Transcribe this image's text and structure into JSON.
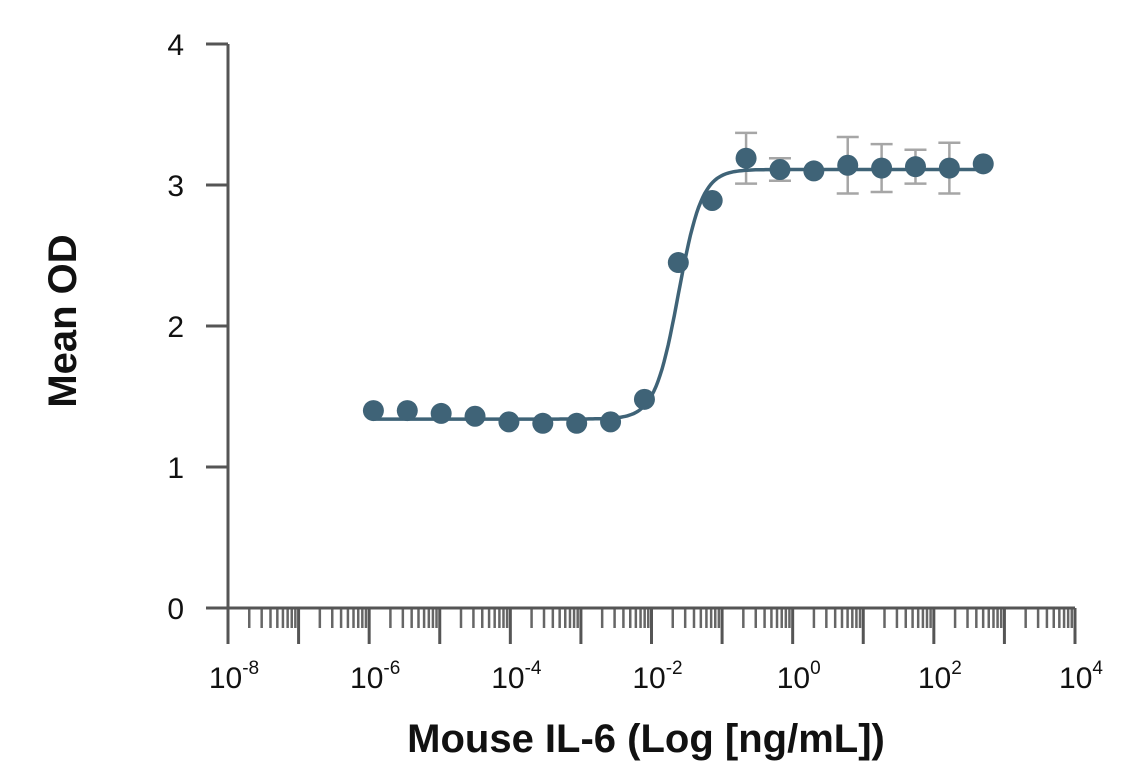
{
  "chart_data": {
    "type": "scatter",
    "title": "",
    "xlabel": "Mouse IL-6 (Log [ng/mL])",
    "ylabel": "Mean OD",
    "x_scale": "log10",
    "xlim_log10": [
      -8,
      4
    ],
    "ylim": [
      0,
      4
    ],
    "grid": false,
    "legend": "none",
    "y_ticks": [
      {
        "value": 0,
        "label": "0"
      },
      {
        "value": 1,
        "label": "1"
      },
      {
        "value": 2,
        "label": "2"
      },
      {
        "value": 3,
        "label": "3"
      },
      {
        "value": 4,
        "label": "4"
      }
    ],
    "x_ticks": [
      {
        "exp": -8,
        "base": "10",
        "sup": "-8"
      },
      {
        "exp": -6,
        "base": "10",
        "sup": "-6"
      },
      {
        "exp": -4,
        "base": "10",
        "sup": "-4"
      },
      {
        "exp": -2,
        "base": "10",
        "sup": "-2"
      },
      {
        "exp": 0,
        "base": "10",
        "sup": "0"
      },
      {
        "exp": 2,
        "base": "10",
        "sup": "2"
      },
      {
        "exp": 4,
        "base": "10",
        "sup": "4"
      }
    ],
    "series": [
      {
        "name": "Mean OD",
        "color": "#3f6377",
        "error_color": "#a6a6a6",
        "points": [
          {
            "x_log10": -5.94,
            "y": 1.4,
            "err": 0
          },
          {
            "x_log10": -5.46,
            "y": 1.4,
            "err": 0
          },
          {
            "x_log10": -4.98,
            "y": 1.38,
            "err": 0
          },
          {
            "x_log10": -4.5,
            "y": 1.36,
            "err": 0
          },
          {
            "x_log10": -4.02,
            "y": 1.32,
            "err": 0
          },
          {
            "x_log10": -3.54,
            "y": 1.31,
            "err": 0
          },
          {
            "x_log10": -3.06,
            "y": 1.31,
            "err": 0
          },
          {
            "x_log10": -2.58,
            "y": 1.32,
            "err": 0
          },
          {
            "x_log10": -2.1,
            "y": 1.48,
            "err": 0
          },
          {
            "x_log10": -1.62,
            "y": 2.45,
            "err": 0
          },
          {
            "x_log10": -1.14,
            "y": 2.89,
            "err": 0
          },
          {
            "x_log10": -0.66,
            "y": 3.19,
            "err": 0.18
          },
          {
            "x_log10": -0.18,
            "y": 3.11,
            "err": 0.08
          },
          {
            "x_log10": 0.3,
            "y": 3.1,
            "err": 0
          },
          {
            "x_log10": 0.78,
            "y": 3.14,
            "err": 0.2
          },
          {
            "x_log10": 1.26,
            "y": 3.12,
            "err": 0.17
          },
          {
            "x_log10": 1.74,
            "y": 3.13,
            "err": 0.12
          },
          {
            "x_log10": 2.22,
            "y": 3.12,
            "err": 0.18
          },
          {
            "x_log10": 2.7,
            "y": 3.15,
            "err": 0
          }
        ]
      }
    ],
    "fit": {
      "type": "4PL",
      "bottom": 1.34,
      "top": 3.11,
      "log_ec50": -1.62,
      "hill": 2.6,
      "x_from_log10": -5.94,
      "x_to_log10": 2.7
    }
  }
}
